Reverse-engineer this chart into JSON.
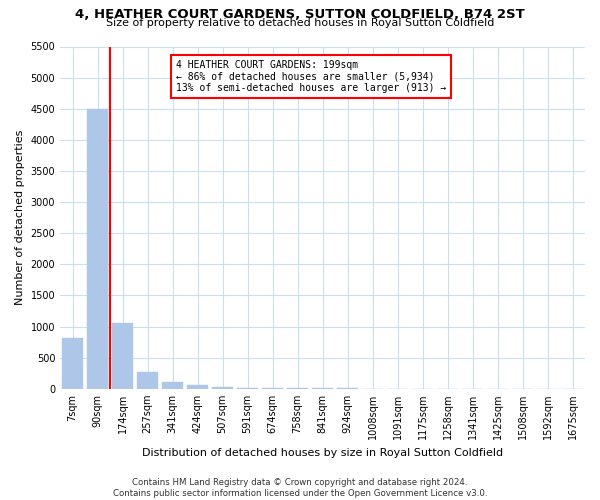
{
  "title": "4, HEATHER COURT GARDENS, SUTTON COLDFIELD, B74 2ST",
  "subtitle": "Size of property relative to detached houses in Royal Sutton Coldfield",
  "xlabel": "Distribution of detached houses by size in Royal Sutton Coldfield",
  "ylabel": "Number of detached properties",
  "footer": "Contains HM Land Registry data © Crown copyright and database right 2024.\nContains public sector information licensed under the Open Government Licence v3.0.",
  "annotation_line1": "4 HEATHER COURT GARDENS: 199sqm",
  "annotation_line2": "← 86% of detached houses are smaller (5,934)",
  "annotation_line3": "13% of semi-detached houses are larger (913) →",
  "bin_labels": [
    "7sqm",
    "90sqm",
    "174sqm",
    "257sqm",
    "341sqm",
    "424sqm",
    "507sqm",
    "591sqm",
    "674sqm",
    "758sqm",
    "841sqm",
    "924sqm",
    "1008sqm",
    "1091sqm",
    "1175sqm",
    "1258sqm",
    "1341sqm",
    "1425sqm",
    "1508sqm",
    "1592sqm",
    "1675sqm"
  ],
  "bar_values": [
    820,
    4500,
    1050,
    270,
    110,
    55,
    30,
    18,
    12,
    8,
    6,
    5,
    4,
    3,
    3,
    2,
    2,
    2,
    1,
    1,
    1
  ],
  "bar_color": "#aec6e8",
  "redline_x": 1.5,
  "ylim": [
    0,
    5500
  ],
  "yticks": [
    0,
    500,
    1000,
    1500,
    2000,
    2500,
    3000,
    3500,
    4000,
    4500,
    5000,
    5500
  ],
  "grid_color": "#c8dff0",
  "title_fontsize": 9.5,
  "subtitle_fontsize": 8,
  "axis_label_fontsize": 8,
  "tick_fontsize": 7
}
